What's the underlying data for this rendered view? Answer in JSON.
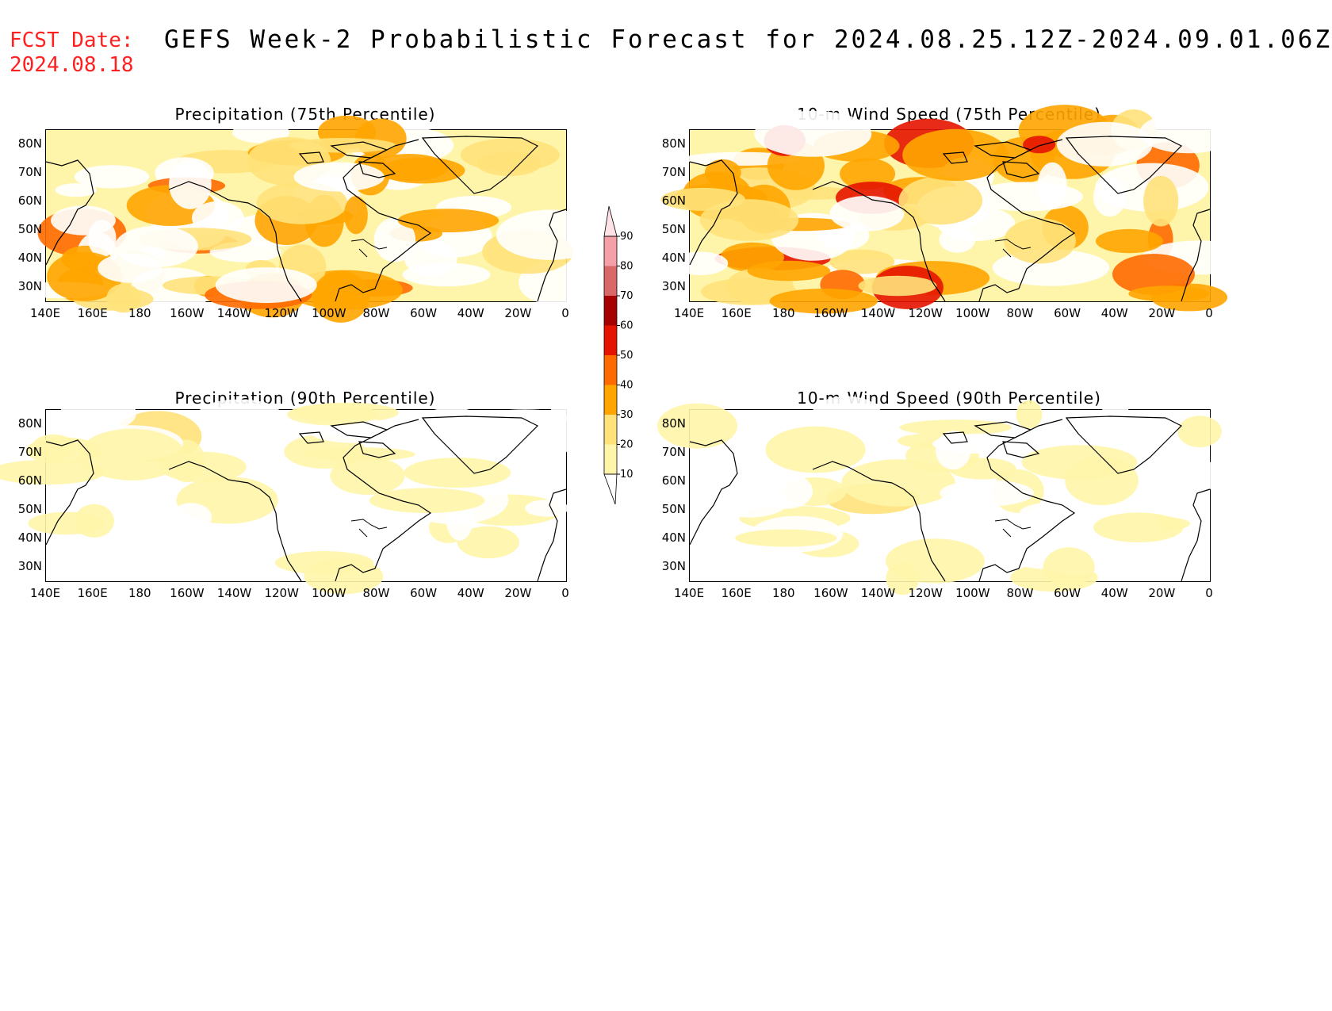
{
  "header": {
    "fcst_label": "FCST Date:",
    "fcst_date": "2024.08.18",
    "title": "GEFS Week-2 Probabilistic Forecast for 2024.08.25.12Z-2024.09.01.06Z"
  },
  "panels": [
    {
      "title": "Precipitation (75th Percentile)",
      "coverage": "high",
      "variable": "precip"
    },
    {
      "title": "10-m Wind Speed (75th Percentile)",
      "coverage": "high",
      "variable": "wind"
    },
    {
      "title": "Precipitation (90th Percentile)",
      "coverage": "low",
      "variable": "precip"
    },
    {
      "title": "10-m Wind Speed (90th Percentile)",
      "coverage": "low",
      "variable": "wind"
    }
  ],
  "axes": {
    "lat_labels": [
      "80N",
      "70N",
      "60N",
      "50N",
      "40N",
      "30N"
    ],
    "lon_labels": [
      "140E",
      "160E",
      "180",
      "160W",
      "140W",
      "120W",
      "100W",
      "80W",
      "60W",
      "40W",
      "20W",
      "0"
    ]
  },
  "colorbar": {
    "levels": [
      "10",
      "20",
      "30",
      "40",
      "50",
      "60",
      "70",
      "80",
      "90"
    ],
    "colors": [
      "#ffffff",
      "#fff5aa",
      "#ffe27a",
      "#ffa500",
      "#ff6a00",
      "#e51400",
      "#a60000",
      "#d96868",
      "#f5a0a8",
      "#ffe2e6"
    ]
  }
}
